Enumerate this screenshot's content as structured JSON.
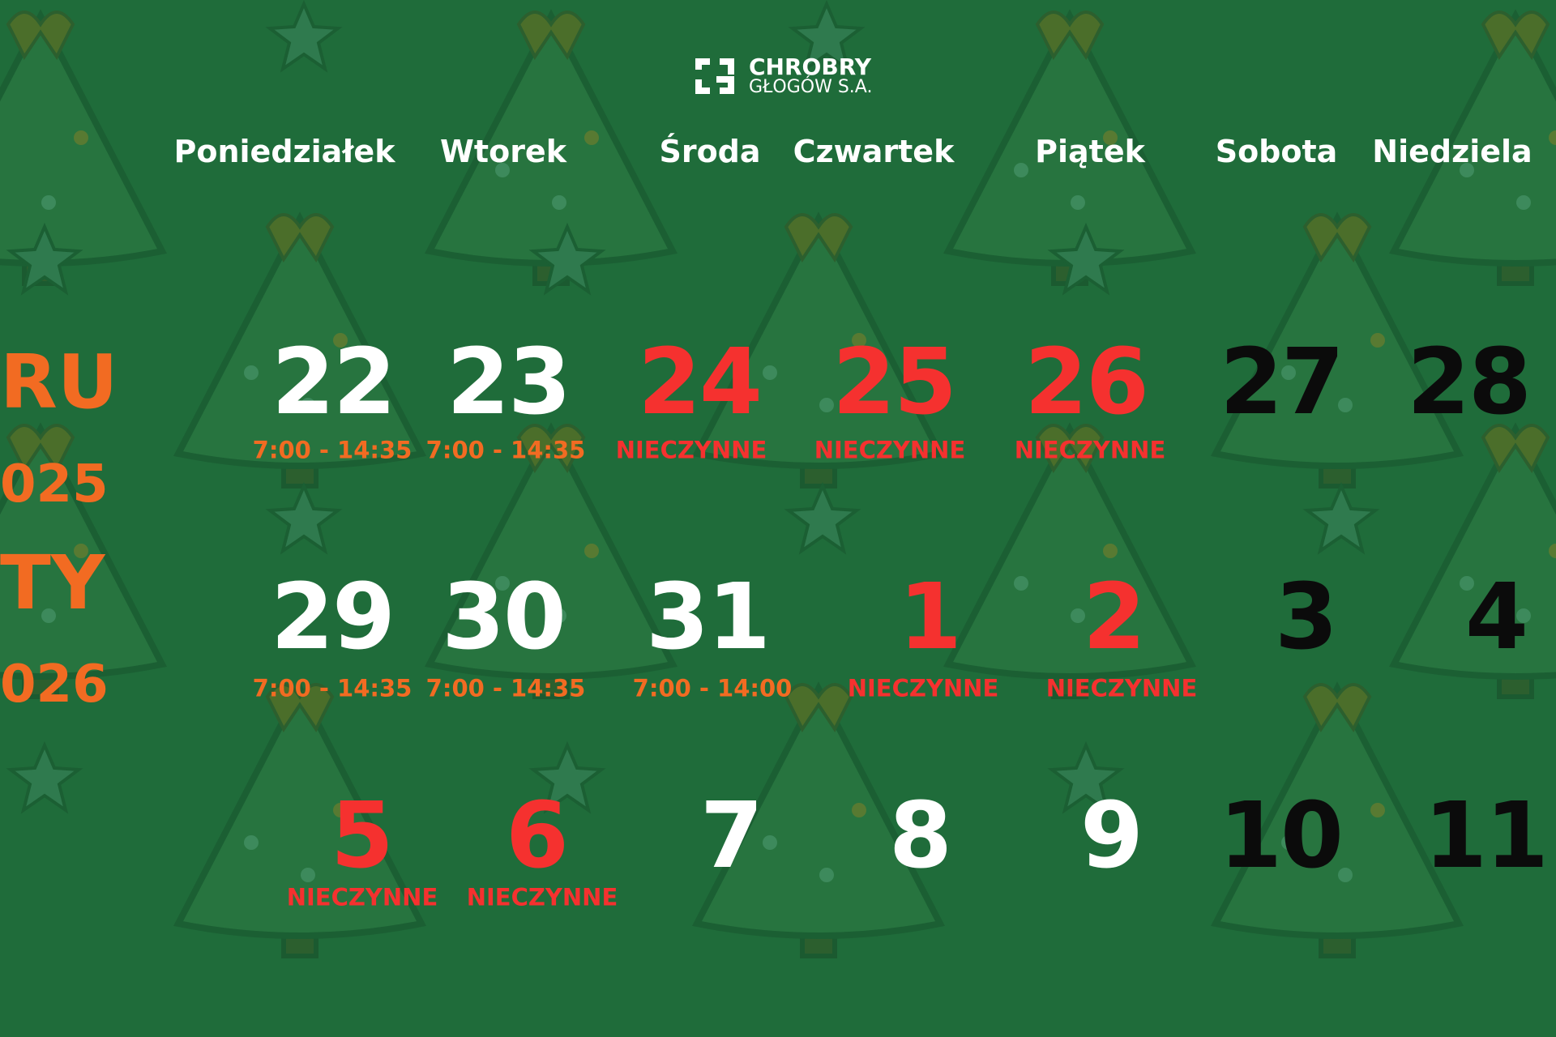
{
  "logo": {
    "name": "CHROBRY",
    "subtitle": "GŁOGÓW S.A."
  },
  "side_text": [
    "RU",
    "025",
    "TY",
    "026"
  ],
  "colors": {
    "background": "#1f6c3a",
    "open_day": "#ffffff",
    "closed_day": "#f5312f",
    "weekend": "#0b0b0b",
    "hours": "#f26b22",
    "closed_label": "#f5312f",
    "month": "#f26b22"
  },
  "weekdays": [
    "Poniedziałek",
    "Wtorek",
    "Środa",
    "Czwartek",
    "Piątek",
    "Sobota",
    "Niedziela"
  ],
  "weeks": [
    [
      {
        "day": "22",
        "status": "open",
        "label": "7:00 - 14:35"
      },
      {
        "day": "23",
        "status": "open",
        "label": "7:00 - 14:35"
      },
      {
        "day": "24",
        "status": "closed",
        "label": "NIECZYNNE"
      },
      {
        "day": "25",
        "status": "closed",
        "label": "NIECZYNNE"
      },
      {
        "day": "26",
        "status": "closed",
        "label": "NIECZYNNE"
      },
      {
        "day": "27",
        "status": "weekend",
        "label": ""
      },
      {
        "day": "28",
        "status": "weekend",
        "label": ""
      }
    ],
    [
      {
        "day": "29",
        "status": "open",
        "label": "7:00 - 14:35"
      },
      {
        "day": "30",
        "status": "open",
        "label": "7:00 - 14:35"
      },
      {
        "day": "31",
        "status": "open",
        "label": "7:00 - 14:00"
      },
      {
        "day": "1",
        "status": "closed",
        "label": "NIECZYNNE"
      },
      {
        "day": "2",
        "status": "closed",
        "label": "NIECZYNNE"
      },
      {
        "day": "3",
        "status": "weekend",
        "label": ""
      },
      {
        "day": "4",
        "status": "weekend",
        "label": ""
      }
    ],
    [
      {
        "day": "5",
        "status": "closed",
        "label": "NIECZYNNE"
      },
      {
        "day": "6",
        "status": "closed",
        "label": "NIECZYNNE"
      },
      {
        "day": "7",
        "status": "open",
        "label": ""
      },
      {
        "day": "8",
        "status": "open",
        "label": ""
      },
      {
        "day": "9",
        "status": "open",
        "label": ""
      },
      {
        "day": "10",
        "status": "weekend",
        "label": ""
      },
      {
        "day": "11",
        "status": "weekend",
        "label": ""
      }
    ]
  ]
}
